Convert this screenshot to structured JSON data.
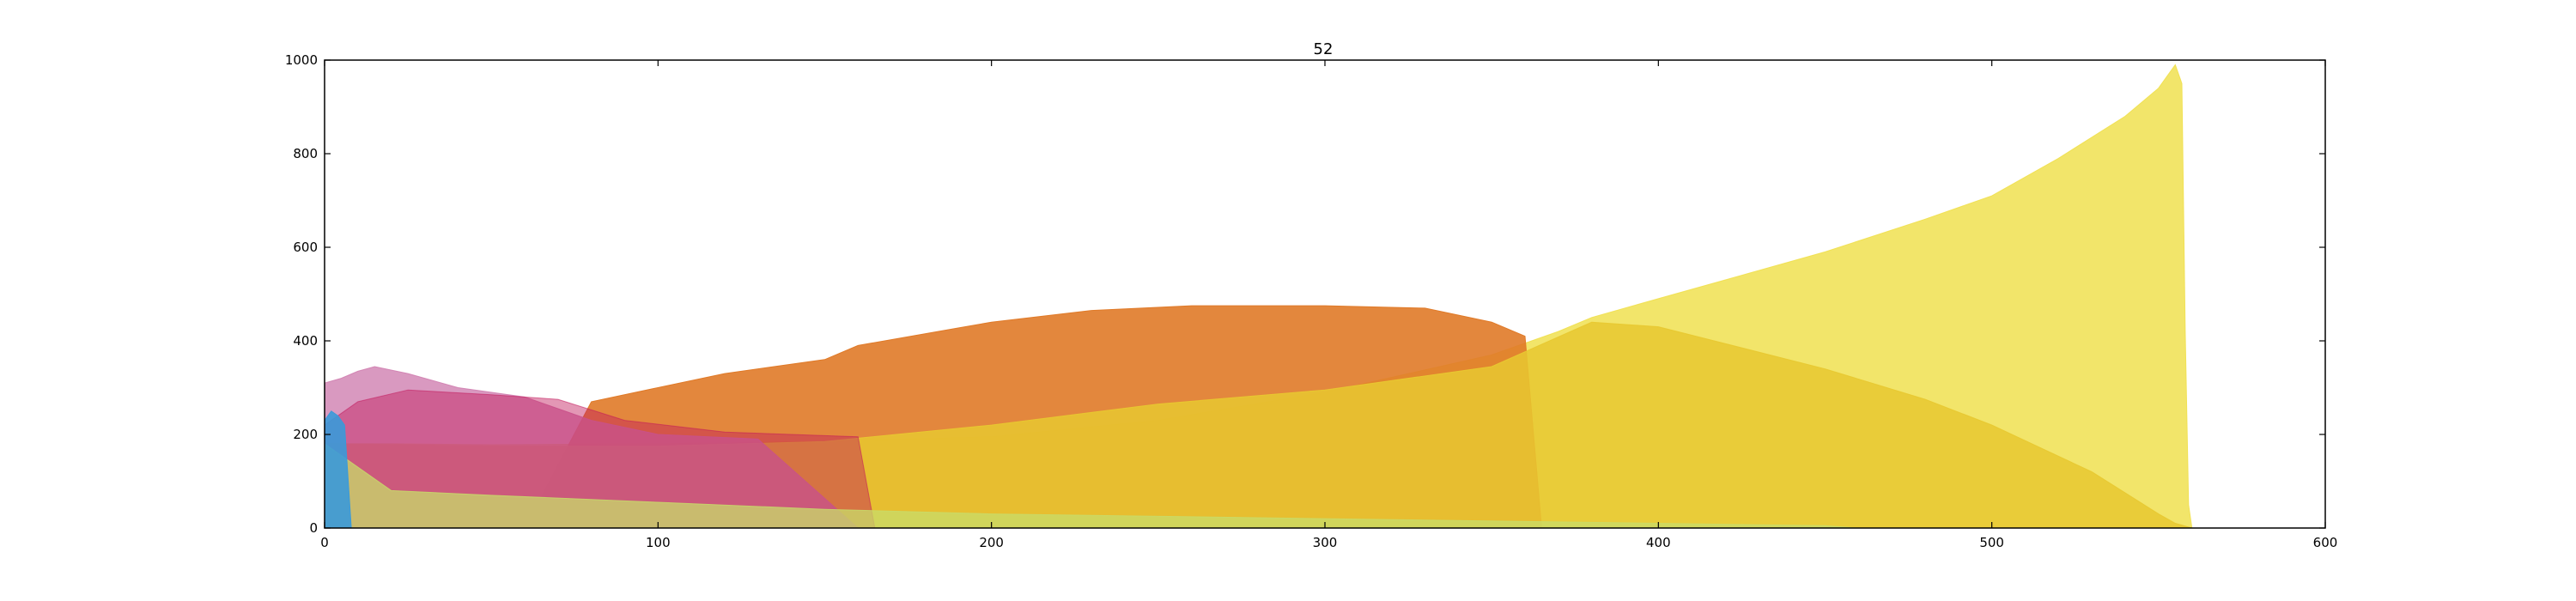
{
  "chart_data": {
    "type": "area",
    "title": "52",
    "xlabel": "",
    "ylabel": "",
    "xlim": [
      0,
      600
    ],
    "ylim": [
      0,
      1000
    ],
    "xticks": [
      0,
      100,
      200,
      300,
      400,
      500,
      600
    ],
    "yticks": [
      0,
      200,
      400,
      600,
      800,
      1000
    ],
    "grid": false,
    "legend": "none",
    "series": [
      {
        "color": "#f0e050",
        "opacity": 0.85,
        "x": [
          0,
          20,
          50,
          100,
          150,
          200,
          250,
          300,
          350,
          370,
          380,
          400,
          420,
          450,
          480,
          500,
          520,
          540,
          550,
          555,
          557,
          558,
          559,
          560
        ],
        "values": [
          180,
          180,
          178,
          180,
          185,
          195,
          230,
          290,
          370,
          420,
          450,
          490,
          530,
          590,
          660,
          710,
          790,
          880,
          940,
          990,
          950,
          420,
          50,
          0
        ]
      },
      {
        "color": "#e07a28",
        "opacity": 0.9,
        "x": [
          0,
          60,
          80,
          100,
          120,
          150,
          160,
          200,
          230,
          260,
          300,
          330,
          350,
          360,
          365
        ],
        "values": [
          0,
          0,
          270,
          300,
          330,
          360,
          390,
          440,
          465,
          475,
          475,
          470,
          440,
          410,
          0
        ]
      },
      {
        "color": "#e8c830",
        "opacity": 0.85,
        "x": [
          0,
          5,
          50,
          100,
          150,
          200,
          250,
          300,
          350,
          380,
          400,
          450,
          480,
          500,
          530,
          550,
          555,
          560
        ],
        "values": [
          180,
          180,
          175,
          175,
          185,
          220,
          265,
          295,
          345,
          440,
          430,
          340,
          275,
          220,
          120,
          30,
          10,
          0
        ]
      },
      {
        "color": "#d080b0",
        "opacity": 0.8,
        "x": [
          0,
          5,
          10,
          15,
          25,
          40,
          60,
          80,
          100,
          130,
          160
        ],
        "values": [
          310,
          320,
          335,
          345,
          330,
          300,
          280,
          230,
          200,
          190,
          0
        ]
      },
      {
        "color": "#c2185b",
        "opacity": 0.45,
        "x": [
          0,
          10,
          25,
          50,
          70,
          90,
          120,
          160,
          165
        ],
        "values": [
          220,
          270,
          295,
          285,
          275,
          230,
          205,
          195,
          0
        ]
      },
      {
        "color": "#c8dc6a",
        "opacity": 0.75,
        "x": [
          0,
          20,
          50,
          100,
          150,
          200,
          300,
          400,
          450,
          460
        ],
        "values": [
          180,
          80,
          70,
          55,
          40,
          30,
          20,
          10,
          5,
          0
        ]
      },
      {
        "color": "#3a9ad9",
        "opacity": 0.9,
        "x": [
          0,
          2,
          4,
          6,
          8
        ],
        "values": [
          230,
          250,
          240,
          220,
          0
        ]
      }
    ]
  }
}
